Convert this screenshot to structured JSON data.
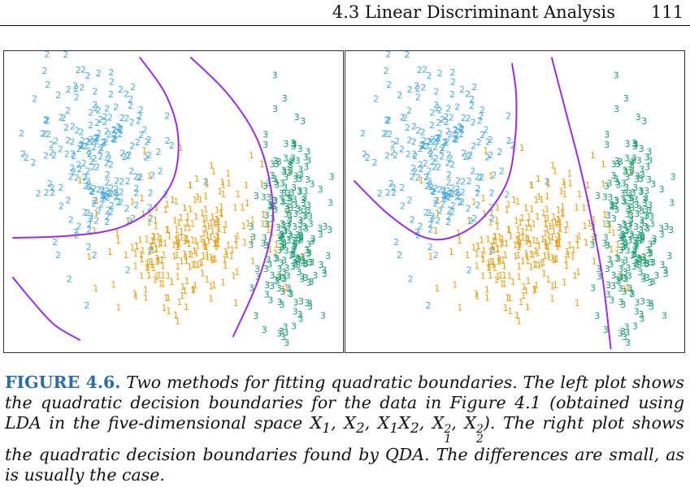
{
  "header": {
    "section_title": "4.3 Linear Discriminant Analysis",
    "page_number": "111"
  },
  "figure": {
    "label": "FIGURE 4.6.",
    "caption_parts": [
      " Two methods for fitting quadratic boundaries. The left plot shows the quadratic decision boundaries for the data in Figure 4.1 (obtained using LDA in the five-dimensional space X",
      "1",
      ", X",
      "2",
      ", X",
      "1",
      "X",
      "2",
      ", X",
      "2",
      "1",
      ", X",
      "2",
      "2",
      "). The right plot shows the quadratic decision boundaries found by QDA. The differences are small, as is usually the case."
    ]
  },
  "colors": {
    "class_1": "#e5a01b",
    "class_2": "#4aa9da",
    "class_3": "#149c6c",
    "boundary": "#9a2fe2",
    "frame": "#333333"
  },
  "chart_data": [
    {
      "type": "scatter",
      "panel": "left",
      "method": "LDA in expanded five-dimensional space",
      "marker_style": "class digit as plotting character",
      "series": [
        {
          "name": "1",
          "marker": "1"
        },
        {
          "name": "2",
          "marker": "2"
        },
        {
          "name": "3",
          "marker": "3"
        }
      ],
      "xlim": [
        -6,
        6
      ],
      "ylim": [
        -5,
        5
      ],
      "axes_shown": false,
      "grid": false,
      "legend": "none",
      "boundaries": [
        {
          "between": [
            "2",
            "1"
          ],
          "points": [
            [
              -5.7,
              -1.2
            ],
            [
              -4,
              -1.15
            ],
            [
              -2.5,
              -1.0
            ],
            [
              -1.5,
              -0.7
            ],
            [
              -0.6,
              -0.1
            ],
            [
              0.05,
              0.9
            ],
            [
              0.15,
              2.3
            ],
            [
              -0.3,
              3.6
            ],
            [
              -1.2,
              4.8
            ]
          ]
        },
        {
          "between": [
            "1",
            "3"
          ],
          "points": [
            [
              0.6,
              4.8
            ],
            [
              1.9,
              3.6
            ],
            [
              2.9,
              2.2
            ],
            [
              3.4,
              0.7
            ],
            [
              3.5,
              -0.8
            ],
            [
              3.0,
              -2.6
            ],
            [
              2.1,
              -4.5
            ]
          ]
        },
        {
          "between": [
            "1",
            "2"
          ],
          "points": [
            [
              -5.7,
              -2.5
            ],
            [
              -5.0,
              -3.3
            ],
            [
              -4.2,
              -4.1
            ],
            [
              -3.3,
              -4.6
            ]
          ]
        }
      ]
    },
    {
      "type": "scatter",
      "panel": "right",
      "method": "QDA",
      "marker_style": "class digit as plotting character",
      "series": [
        {
          "name": "1",
          "marker": "1"
        },
        {
          "name": "2",
          "marker": "2"
        },
        {
          "name": "3",
          "marker": "3"
        }
      ],
      "xlim": [
        -6,
        6
      ],
      "ylim": [
        -5,
        5
      ],
      "axes_shown": false,
      "grid": false,
      "legend": "none",
      "boundaries": [
        {
          "between": [
            "2",
            "1"
          ],
          "points": [
            [
              -5.7,
              0.7
            ],
            [
              -4.5,
              -0.4
            ],
            [
              -3.3,
              -1.15
            ],
            [
              -2.3,
              -1.2
            ],
            [
              -1.2,
              -0.6
            ],
            [
              -0.3,
              0.6
            ],
            [
              0.0,
              2.0
            ],
            [
              0.05,
              3.5
            ],
            [
              -0.1,
              4.6
            ]
          ]
        },
        {
          "between": [
            "1",
            "3"
          ],
          "points": [
            [
              1.3,
              4.8
            ],
            [
              1.8,
              3.0
            ],
            [
              2.3,
              1.2
            ],
            [
              2.7,
              -0.5
            ],
            [
              3.1,
              -2.5
            ],
            [
              3.4,
              -4.9
            ]
          ]
        }
      ]
    }
  ]
}
